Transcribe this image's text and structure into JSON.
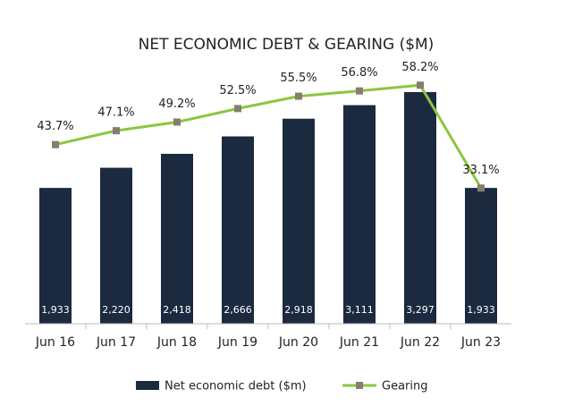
{
  "chart_data": {
    "type": "combo",
    "title": "NET ECONOMIC DEBT & GEARING ($M)",
    "categories": [
      "Jun 16",
      "Jun 17",
      "Jun 18",
      "Jun 19",
      "Jun 20",
      "Jun 21",
      "Jun 22",
      "Jun 23"
    ],
    "ylim": [
      0,
      3500
    ],
    "y2lim": [
      0,
      60
    ],
    "series": [
      {
        "name": "Net economic debt ($m)",
        "type": "bar",
        "color": "#1c2a3f",
        "values": [
          1933,
          2220,
          2418,
          2666,
          2918,
          3111,
          3297,
          1933
        ],
        "value_labels": [
          "1,933",
          "2,220",
          "2,418",
          "2,666",
          "2,918",
          "3,111",
          "3,297",
          "1,933"
        ]
      },
      {
        "name": "Gearing",
        "type": "line",
        "axis": "y2",
        "color": "#8dc63f",
        "marker_color": "#857d6f",
        "values": [
          43.7,
          47.1,
          49.2,
          52.5,
          55.5,
          56.8,
          58.2,
          33.1
        ],
        "value_labels": [
          "43.7%",
          "47.1%",
          "49.2%",
          "52.5%",
          "55.5%",
          "56.8%",
          "58.2%",
          "33.1%"
        ]
      }
    ]
  }
}
